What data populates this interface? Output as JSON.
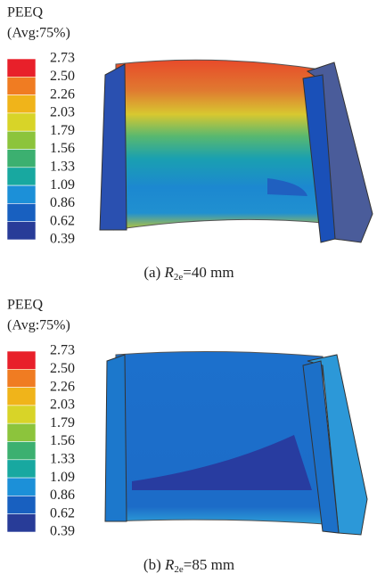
{
  "panels": [
    {
      "legend": {
        "title": "PEEQ",
        "subtitle": "(Avg:75%)",
        "levels": [
          "2.73",
          "2.50",
          "2.26",
          "2.03",
          "1.79",
          "1.56",
          "1.33",
          "1.09",
          "0.86",
          "0.62",
          "0.39"
        ],
        "colors": [
          "#e8202a",
          "#f07c22",
          "#f0b41a",
          "#d8d428",
          "#8cc43c",
          "#3cb070",
          "#18a8a0",
          "#1c90d8",
          "#1860c0",
          "#283c98"
        ]
      },
      "caption": {
        "prefix": "(a) ",
        "symbol": "R",
        "subscript": "2e",
        "suffix": "=40 mm"
      }
    },
    {
      "legend": {
        "title": "PEEQ",
        "subtitle": "(Avg:75%)",
        "levels": [
          "2.73",
          "2.50",
          "2.26",
          "2.03",
          "1.79",
          "1.56",
          "1.33",
          "1.09",
          "0.86",
          "0.62",
          "0.39"
        ],
        "colors": [
          "#e8202a",
          "#f07c22",
          "#f0b41a",
          "#d8d428",
          "#8cc43c",
          "#3cb070",
          "#18a8a0",
          "#1c90d8",
          "#1860c0",
          "#283c98"
        ]
      },
      "caption": {
        "prefix": "(b) ",
        "symbol": "R",
        "subscript": "2e",
        "suffix": "=85 mm"
      }
    }
  ]
}
